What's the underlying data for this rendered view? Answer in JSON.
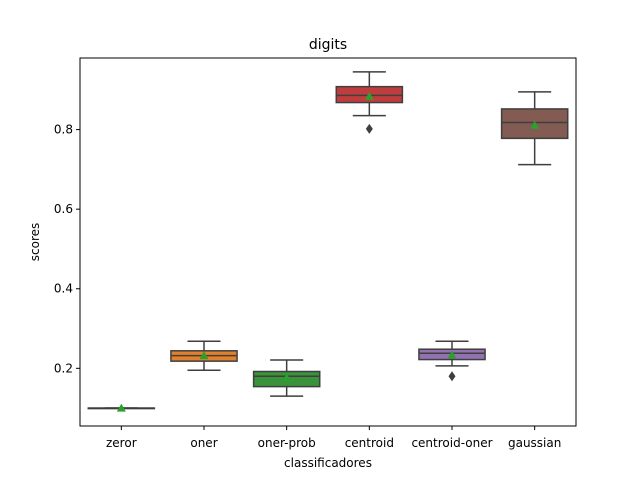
{
  "chart_data": {
    "type": "box",
    "title": "digits",
    "xlabel": "classificadores",
    "ylabel": "scores",
    "ylim": [
      0.055,
      0.98
    ],
    "yticks": [
      "0.2",
      "0.4",
      "0.6",
      "0.8"
    ],
    "ytick_values": [
      0.2,
      0.4,
      0.6,
      0.8
    ],
    "categories": [
      "zeror",
      "oner",
      "oner-prob",
      "centroid",
      "centroid-oner",
      "gaussian"
    ],
    "boxes": [
      {
        "label": "zeror",
        "color": "#3274a1",
        "whisker_low": 0.1,
        "q1": 0.1,
        "median": 0.1,
        "q3": 0.1,
        "whisker_high": 0.1,
        "mean": 0.1,
        "outliers": []
      },
      {
        "label": "oner",
        "color": "#e1812c",
        "whisker_low": 0.195,
        "q1": 0.218,
        "median": 0.232,
        "q3": 0.244,
        "whisker_high": 0.268,
        "mean": 0.232,
        "outliers": []
      },
      {
        "label": "oner-prob",
        "color": "#3a923a",
        "whisker_low": 0.13,
        "q1": 0.154,
        "median": 0.18,
        "q3": 0.192,
        "whisker_high": 0.221,
        "mean": 0.176,
        "outliers": []
      },
      {
        "label": "centroid",
        "color": "#c03d3e",
        "whisker_low": 0.835,
        "q1": 0.868,
        "median": 0.886,
        "q3": 0.908,
        "whisker_high": 0.945,
        "mean": 0.884,
        "outliers": [
          0.802
        ]
      },
      {
        "label": "centroid-oner",
        "color": "#9372b2",
        "whisker_low": 0.206,
        "q1": 0.222,
        "median": 0.238,
        "q3": 0.248,
        "whisker_high": 0.268,
        "mean": 0.233,
        "outliers": [
          0.18
        ]
      },
      {
        "label": "gaussian",
        "color": "#845b53",
        "whisker_low": 0.712,
        "q1": 0.778,
        "median": 0.818,
        "q3": 0.852,
        "whisker_high": 0.895,
        "mean": 0.811,
        "outliers": []
      }
    ],
    "mean_marker_color": "#2ca02c",
    "line_color": "#3f3f3f",
    "grid": false,
    "legend": "none"
  }
}
